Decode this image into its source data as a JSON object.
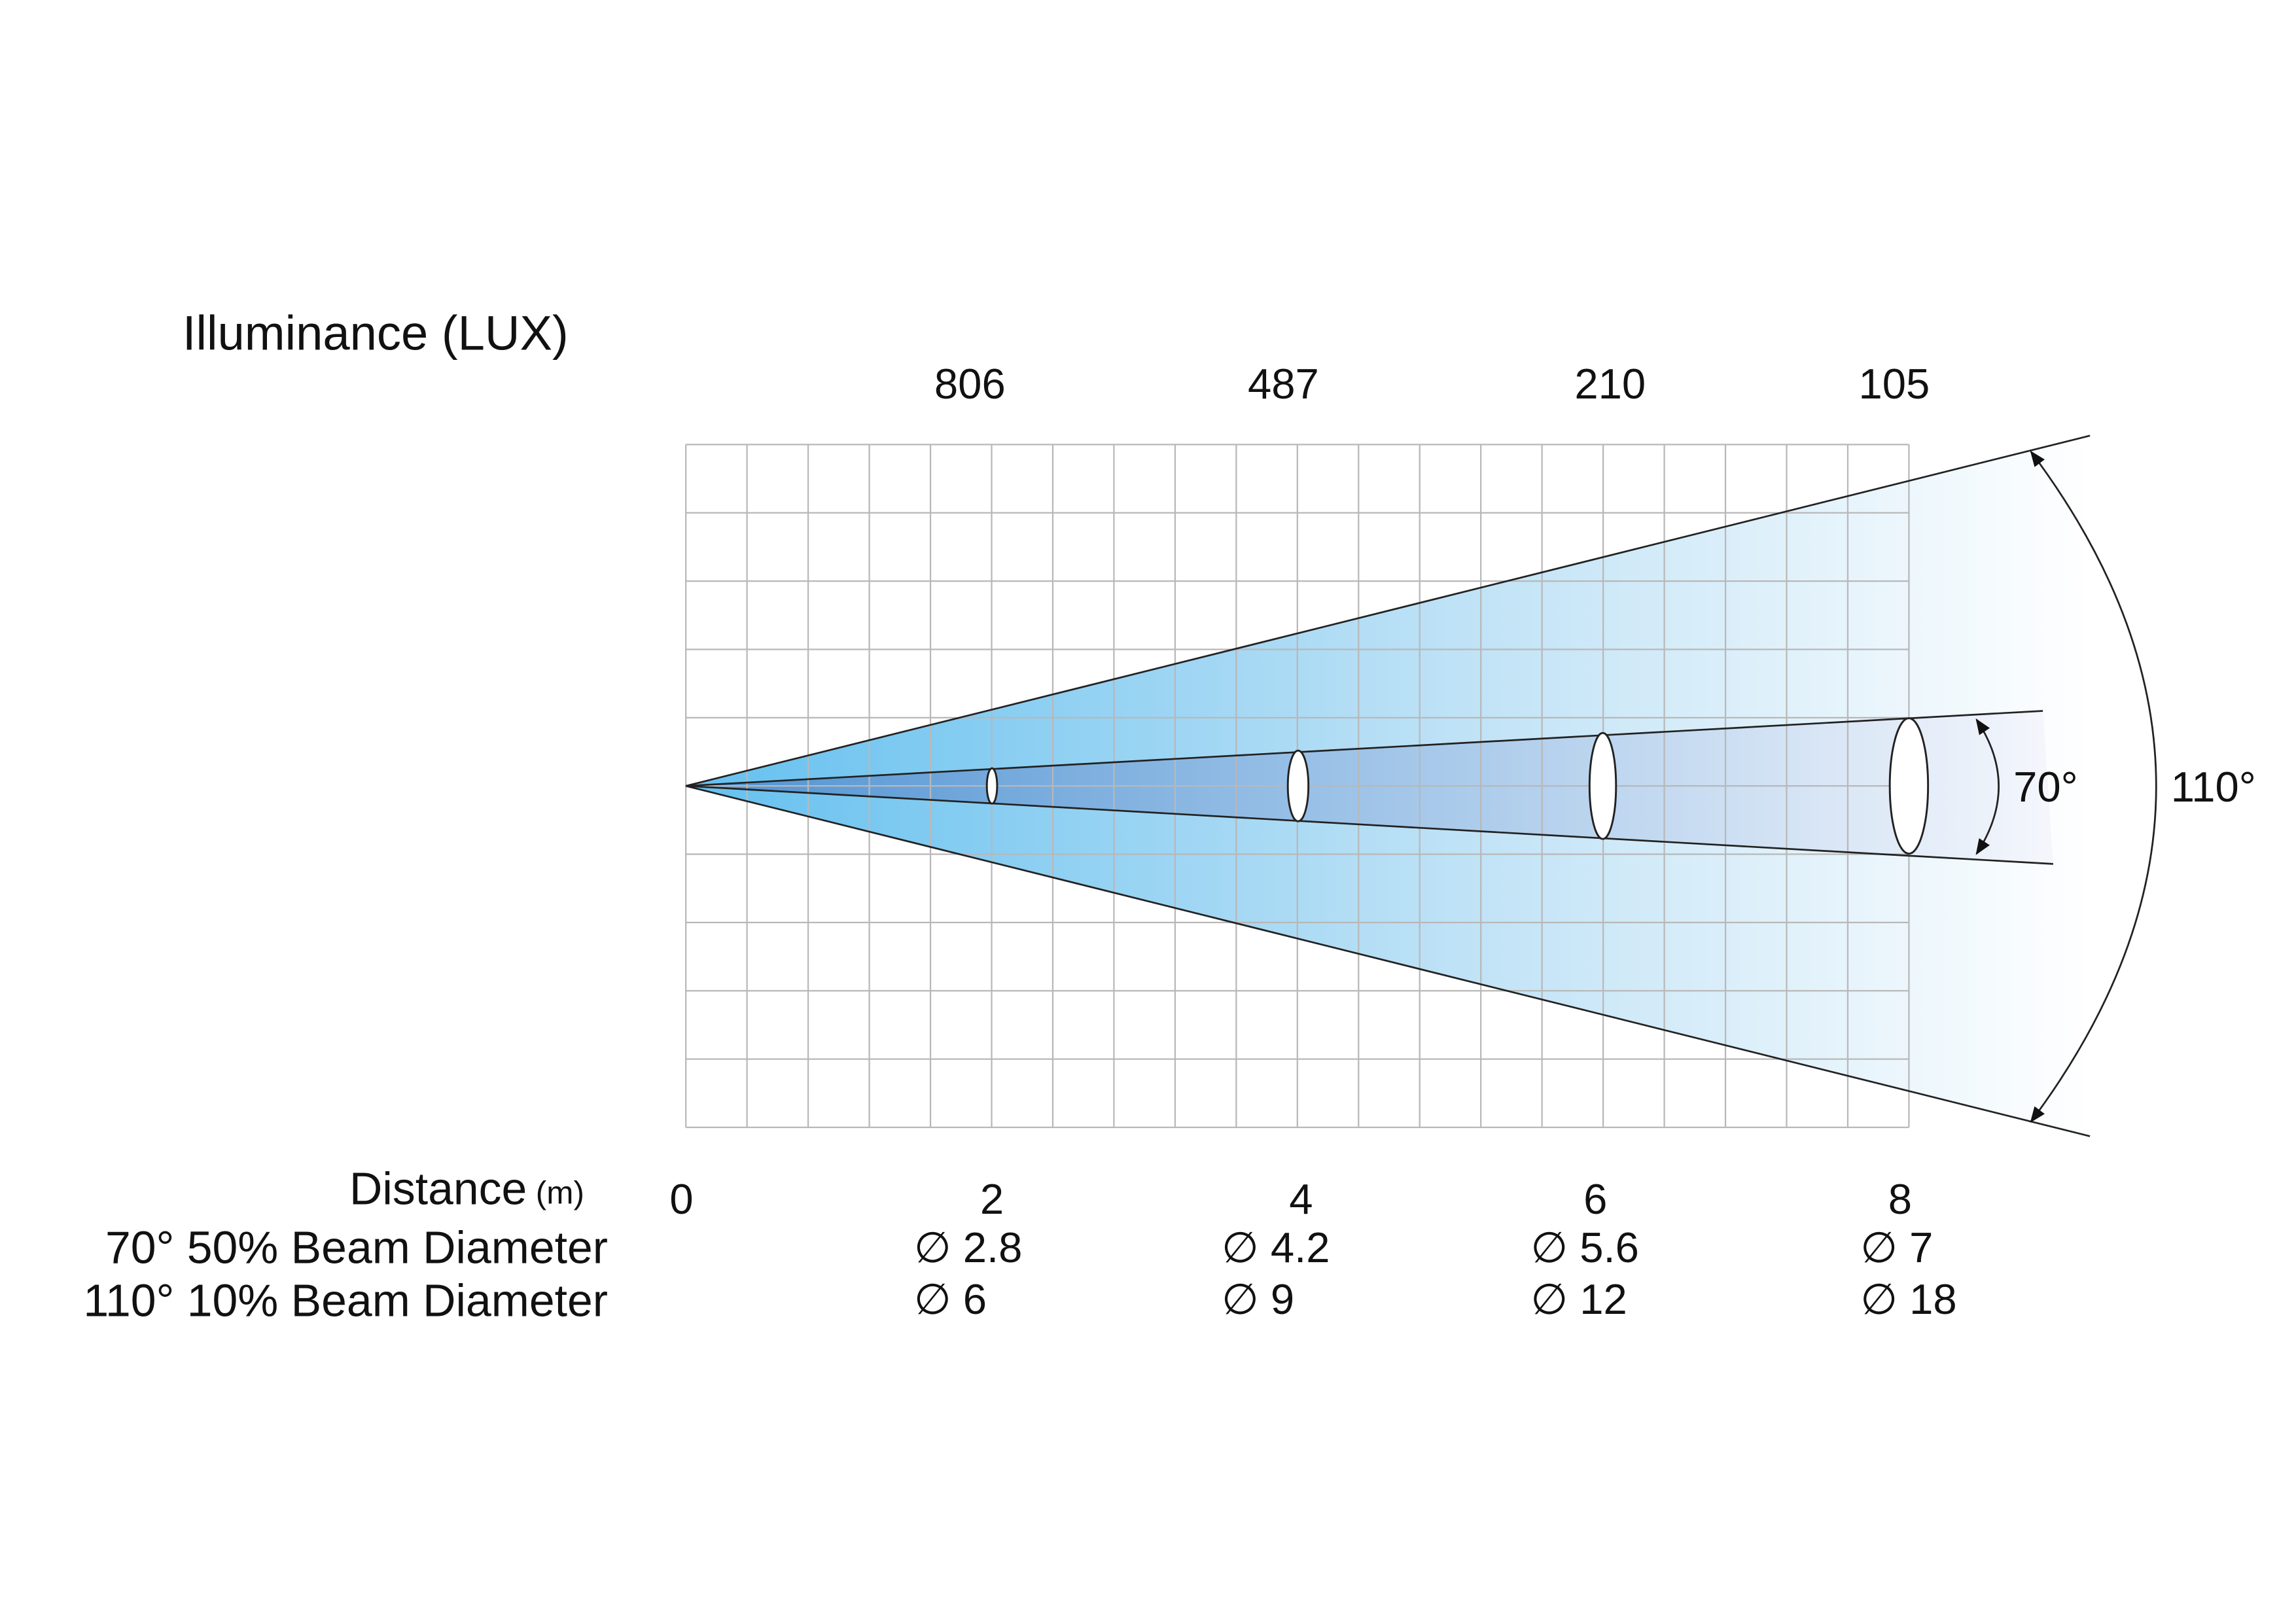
{
  "illuminance": {
    "title": "Illuminance (LUX)",
    "values": [
      806,
      487,
      210,
      105
    ]
  },
  "distance": {
    "label": "Distance",
    "unit": "(m)",
    "values": [
      0,
      2,
      4,
      6,
      8
    ]
  },
  "beam_rows": [
    {
      "label": "70° 50% Beam Diameter",
      "values": [
        "∅ 2.8",
        "∅ 4.2",
        "∅ 5.6",
        "∅ 7"
      ]
    },
    {
      "label": "110° 10% Beam Diameter",
      "values": [
        "∅ 6",
        "∅ 9",
        "∅ 12",
        "∅ 18"
      ]
    }
  ],
  "angles": {
    "inner": "70°",
    "outer": "110°"
  }
}
